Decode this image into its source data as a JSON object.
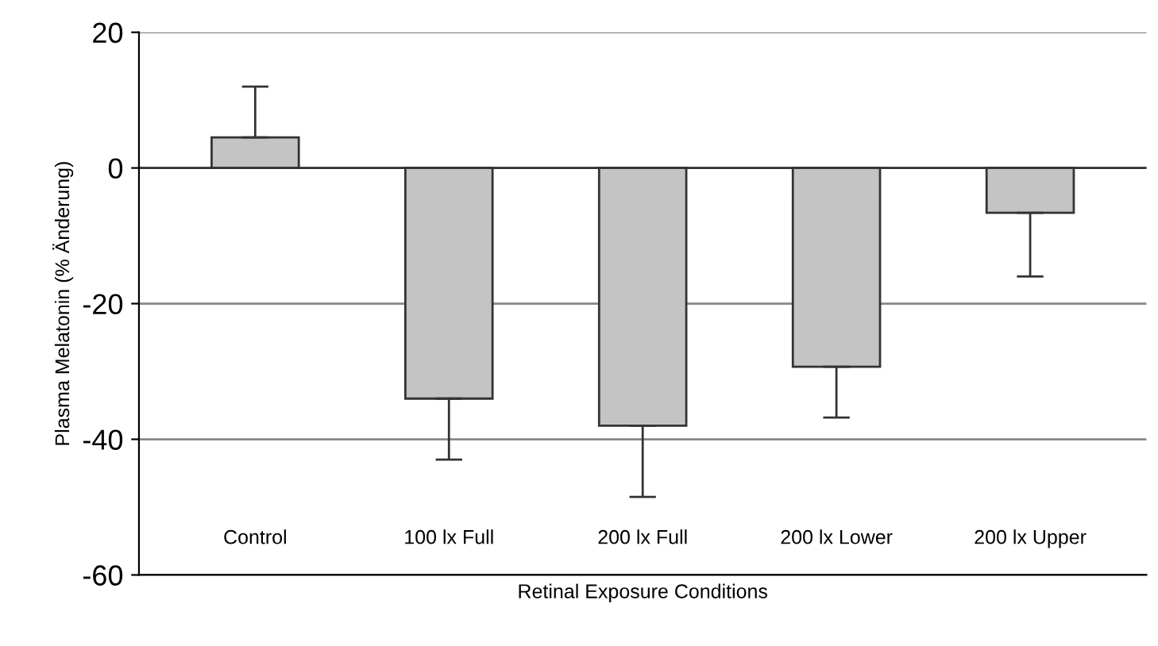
{
  "chart_data": {
    "type": "bar",
    "xlabel": "Retinal Exposure Conditions",
    "ylabel": "Plasma Melatonin (% Änderung)",
    "categories": [
      "Control",
      "100 lx Full",
      "200 lx Full",
      "200 lx Lower",
      "200 lx Upper"
    ],
    "values": [
      4.5,
      -34,
      -38,
      -29.3,
      -6.6
    ],
    "errors": [
      [
        4.5,
        12
      ],
      [
        -43,
        -34
      ],
      [
        -48.5,
        -38
      ],
      [
        -36.8,
        -29.3
      ],
      [
        -16,
        -6.6
      ]
    ],
    "color": "#c4c4c4",
    "ylim": [
      -60,
      20
    ],
    "yticks": [
      -60,
      -40,
      -20,
      0,
      20
    ],
    "grid": "y"
  }
}
